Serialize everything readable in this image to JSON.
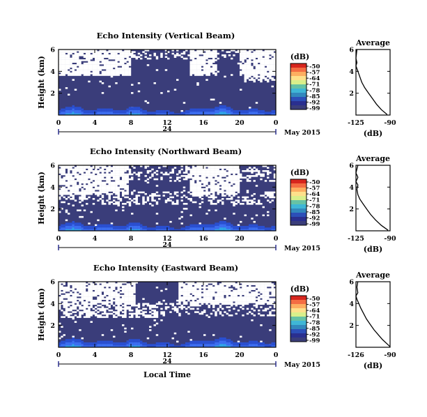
{
  "chart_data": [
    {
      "type": "heatmap",
      "title": "Echo Intensity (Vertical Beam)",
      "ylabel": "Height (km)",
      "x_ticks": [
        "0",
        "4",
        "8",
        "12",
        "16",
        "20",
        "0"
      ],
      "y_ticks": [
        "6",
        "4",
        "2"
      ],
      "xlim": [
        0,
        24
      ],
      "ylim": [
        0,
        6
      ],
      "date_day": "24",
      "date_month": "May 2015",
      "colorbar": {
        "unit": "(dB)",
        "ticks": [
          "-50",
          "-57",
          "-64",
          "-71",
          "-78",
          "-85",
          "-92",
          "-99"
        ]
      },
      "average_profile": {
        "title": "Average",
        "xlabel": "(dB)",
        "x_ticks": [
          "-125",
          "-90"
        ],
        "y_ticks": [
          "6",
          "4",
          "2"
        ],
        "xlim": [
          -125,
          -90
        ],
        "ylim": [
          0,
          6
        ],
        "points": [
          [
            -124,
            6.0
          ],
          [
            -125,
            5.2
          ],
          [
            -124,
            4.8
          ],
          [
            -125,
            4.5
          ],
          [
            -123,
            4.0
          ],
          [
            -121,
            3.5
          ],
          [
            -119,
            3.0
          ],
          [
            -116,
            2.5
          ],
          [
            -112,
            2.0
          ],
          [
            -108,
            1.5
          ],
          [
            -104,
            1.0
          ],
          [
            -99,
            0.5
          ],
          [
            -93,
            0.05
          ]
        ]
      }
    },
    {
      "type": "heatmap",
      "title": "Echo Intensity (Northward Beam)",
      "ylabel": "Height (km)",
      "x_ticks": [
        "0",
        "4",
        "8",
        "12",
        "16",
        "20",
        "0"
      ],
      "y_ticks": [
        "6",
        "4",
        "2"
      ],
      "xlim": [
        0,
        24
      ],
      "ylim": [
        0,
        6
      ],
      "date_day": "24",
      "date_month": "May 2015",
      "colorbar": {
        "unit": "(dB)",
        "ticks": [
          "-50",
          "-57",
          "-64",
          "-71",
          "-78",
          "-85",
          "-92",
          "-99"
        ]
      },
      "average_profile": {
        "title": "Average",
        "xlabel": "(dB)",
        "x_ticks": [
          "-125",
          "-90"
        ],
        "y_ticks": [
          "6",
          "4",
          "2"
        ],
        "xlim": [
          -125,
          -90
        ],
        "ylim": [
          0,
          6
        ],
        "points": [
          [
            -123,
            6.0
          ],
          [
            -125,
            5.3
          ],
          [
            -123,
            4.9
          ],
          [
            -125,
            4.5
          ],
          [
            -123,
            4.2
          ],
          [
            -124,
            3.8
          ],
          [
            -123,
            3.3
          ],
          [
            -121,
            2.9
          ],
          [
            -118,
            2.5
          ],
          [
            -114,
            2.0
          ],
          [
            -110,
            1.5
          ],
          [
            -105,
            1.0
          ],
          [
            -99,
            0.5
          ],
          [
            -92,
            0.05
          ]
        ]
      }
    },
    {
      "type": "heatmap",
      "title": "Echo Intensity (Eastward Beam)",
      "ylabel": "Height (km)",
      "xlabel": "Local Time",
      "x_ticks": [
        "0",
        "4",
        "8",
        "12",
        "16",
        "20",
        "0"
      ],
      "y_ticks": [
        "6",
        "4",
        "2"
      ],
      "xlim": [
        0,
        24
      ],
      "ylim": [
        0,
        6
      ],
      "date_day": "24",
      "date_month": "May 2015",
      "colorbar": {
        "unit": "(dB)",
        "ticks": [
          "-50",
          "-57",
          "-64",
          "-71",
          "-78",
          "-85",
          "-92",
          "-99"
        ]
      },
      "average_profile": {
        "title": "Average",
        "xlabel": "(dB)",
        "x_ticks": [
          "-126",
          "-90"
        ],
        "y_ticks": [
          "6",
          "4",
          "2"
        ],
        "xlim": [
          -126,
          -90
        ],
        "ylim": [
          0,
          6
        ],
        "points": [
          [
            -124,
            6.0
          ],
          [
            -125,
            5.5
          ],
          [
            -124,
            5.0
          ],
          [
            -126,
            4.7
          ],
          [
            -125,
            4.4
          ],
          [
            -123,
            4.0
          ],
          [
            -121,
            3.6
          ],
          [
            -118,
            3.1
          ],
          [
            -115,
            2.6
          ],
          [
            -111,
            2.1
          ],
          [
            -107,
            1.6
          ],
          [
            -102,
            1.1
          ],
          [
            -98,
            0.7
          ],
          [
            -93,
            0.3
          ],
          [
            -90,
            0.05
          ]
        ]
      }
    }
  ]
}
